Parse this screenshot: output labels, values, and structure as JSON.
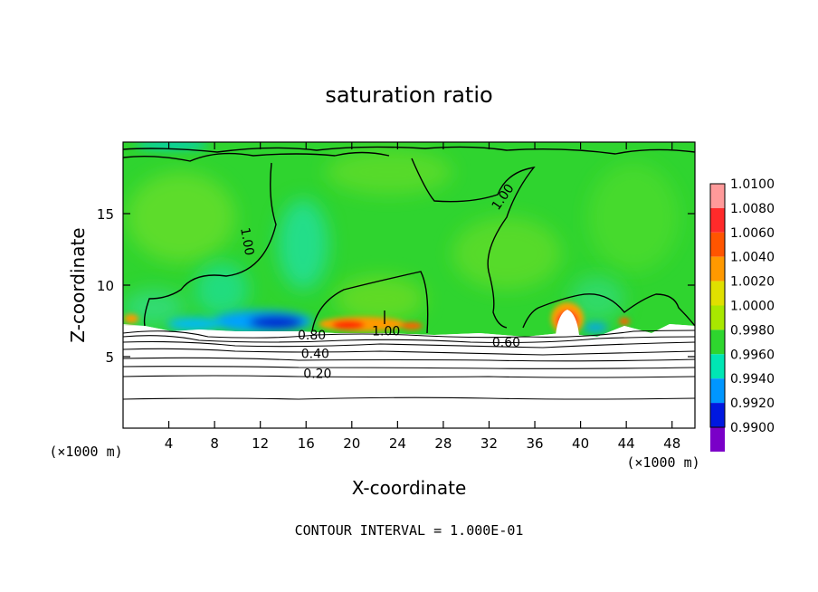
{
  "chart_data": {
    "type": "heatmap",
    "title": "saturation ratio",
    "xlabel": "X-coordinate",
    "ylabel": "Z-coordinate",
    "x_unit_left": "(×1000 m)",
    "x_unit_right": "(×1000 m)",
    "xlim": [
      0,
      50
    ],
    "ylim": [
      0,
      20
    ],
    "x_ticks": [
      "4",
      "8",
      "12",
      "16",
      "20",
      "24",
      "28",
      "32",
      "36",
      "40",
      "44",
      "48"
    ],
    "y_ticks": [
      "5",
      "10",
      "15"
    ],
    "colorbar": {
      "levels": [
        "1.0100",
        "1.0080",
        "1.0060",
        "1.0040",
        "1.0020",
        "1.0000",
        "0.9980",
        "0.9960",
        "0.9940",
        "0.9920",
        "0.9900"
      ],
      "colors": [
        "#ff9a9a",
        "#ff2a2a",
        "#ff5500",
        "#ff9900",
        "#e0e000",
        "#a8e800",
        "#2ed62e",
        "#00e6b4",
        "#0096ff",
        "#0018e0",
        "#7a00c8"
      ]
    },
    "contour_labels": [
      {
        "text": "1.00",
        "x": 10.5,
        "y": 13.0,
        "rotate": 80
      },
      {
        "text": "1.00",
        "x": 33.5,
        "y": 16.0,
        "rotate": -55
      },
      {
        "text": "1.00",
        "x": 23.0,
        "y": 6.5,
        "rotate": 0
      },
      {
        "text": "0.80",
        "x": 16.5,
        "y": 6.2,
        "rotate": 0
      },
      {
        "text": "0.60",
        "x": 33.5,
        "y": 5.7,
        "rotate": 0
      },
      {
        "text": "0.40",
        "x": 16.8,
        "y": 4.9,
        "rotate": 0
      },
      {
        "text": "0.20",
        "x": 17.0,
        "y": 3.5,
        "rotate": 0
      }
    ],
    "footer": "CONTOUR INTERVAL = 1.000E-01",
    "grid": false,
    "legend": "right colorbar"
  }
}
